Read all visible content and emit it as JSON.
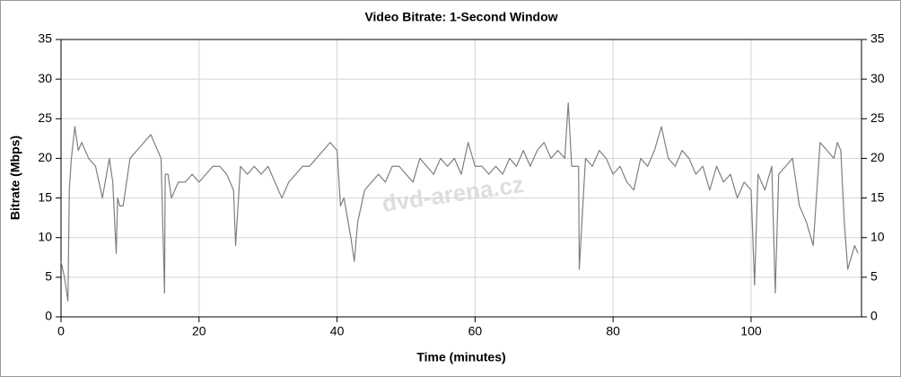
{
  "chart_data": {
    "type": "line",
    "title": "Video Bitrate: 1-Second Window",
    "xlabel": "Time (minutes)",
    "ylabel": "Bitrate (Mbps)",
    "watermark": "dvd-arena.cz",
    "color": "#7f7f7f",
    "x": [
      0,
      0.5,
      1,
      1.2,
      1.5,
      2,
      2.5,
      3,
      4,
      5,
      6,
      7,
      7.5,
      8,
      8.2,
      8.5,
      9,
      10,
      11,
      12,
      13,
      14,
      14.5,
      15,
      15.1,
      15.5,
      16,
      17,
      18,
      19,
      20,
      21,
      22,
      23,
      24,
      25,
      25.3,
      26,
      27,
      28,
      29,
      30,
      31,
      32,
      33,
      34,
      35,
      36,
      37,
      38,
      39,
      40,
      40.5,
      41,
      42,
      42.5,
      43,
      44,
      45,
      46,
      47,
      48,
      49,
      50,
      51,
      52,
      53,
      54,
      55,
      56,
      57,
      58,
      59,
      60,
      61,
      62,
      63,
      64,
      65,
      66,
      67,
      68,
      69,
      70,
      71,
      72,
      73,
      73.5,
      74,
      75,
      75.1,
      76,
      77,
      78,
      79,
      80,
      81,
      82,
      83,
      84,
      85,
      86,
      87,
      88,
      89,
      90,
      91,
      92,
      93,
      94,
      95,
      96,
      97,
      98,
      99,
      100,
      100.5,
      101,
      102,
      103,
      103.5,
      104,
      105,
      106,
      107,
      108,
      109,
      110,
      111,
      112,
      112.5,
      113,
      113.5,
      114,
      115,
      115.5
    ],
    "values": [
      7,
      5,
      2,
      16,
      20,
      24,
      21,
      22,
      20,
      19,
      15,
      20,
      17,
      8,
      15,
      14,
      14,
      20,
      21,
      22,
      23,
      21,
      20,
      3,
      18,
      18,
      15,
      17,
      17,
      18,
      17,
      18,
      19,
      19,
      18,
      16,
      9,
      19,
      18,
      19,
      18,
      19,
      17,
      15,
      17,
      18,
      19,
      19,
      20,
      21,
      22,
      21,
      14,
      15,
      10,
      7,
      12,
      16,
      17,
      18,
      17,
      19,
      19,
      18,
      17,
      20,
      19,
      18,
      20,
      19,
      20,
      18,
      22,
      19,
      19,
      18,
      19,
      18,
      20,
      19,
      21,
      19,
      21,
      22,
      20,
      21,
      20,
      27,
      19,
      19,
      6,
      20,
      19,
      21,
      20,
      18,
      19,
      17,
      16,
      20,
      19,
      21,
      24,
      20,
      19,
      21,
      20,
      18,
      19,
      16,
      19,
      17,
      18,
      15,
      17,
      16,
      4,
      18,
      16,
      19,
      3,
      18,
      19,
      20,
      14,
      12,
      9,
      22,
      21,
      20,
      22,
      21,
      12,
      6,
      9,
      8
    ],
    "xlim": [
      0,
      116
    ],
    "xticks": [
      0,
      20,
      40,
      60,
      80,
      100
    ],
    "ylim": [
      0,
      35
    ],
    "yticks": [
      0,
      5,
      10,
      15,
      20,
      25,
      30,
      35
    ],
    "y2lim": [
      0,
      35
    ],
    "y2ticks": [
      0,
      5,
      10,
      15,
      20,
      25,
      30,
      35
    ]
  }
}
